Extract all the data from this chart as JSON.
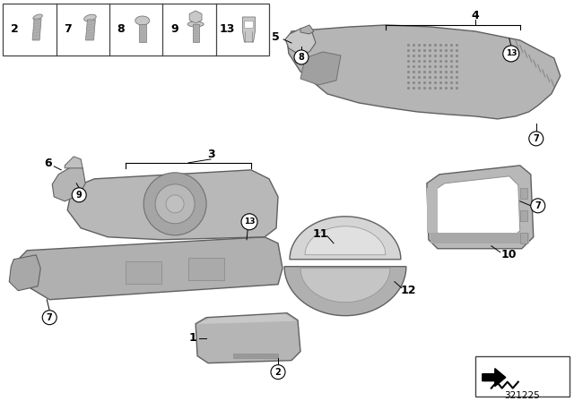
{
  "bg_color": "#ffffff",
  "diagram_number": "321225",
  "part_gray": "#b0b0b0",
  "part_gray_light": "#c8c8c8",
  "part_gray_dark": "#888888",
  "edge_color": "#606060",
  "label_color": "#000000"
}
